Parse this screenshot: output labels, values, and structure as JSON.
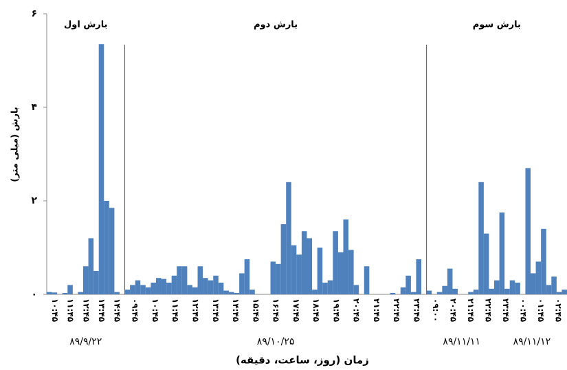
{
  "chart_data": {
    "type": "bar",
    "y_label": "بارش (میلی متر)",
    "x_label": "زمان (روز، ساعت، دقیقه)",
    "color": "#4f81bd",
    "ylim": [
      0,
      6
    ],
    "yticks": [
      {
        "value": 0,
        "label": "۰"
      },
      {
        "value": 2,
        "label": "۲"
      },
      {
        "value": 4,
        "label": "۴"
      },
      {
        "value": 6,
        "label": "۶"
      }
    ],
    "series": [
      {
        "name": "بارش اول",
        "values": [
          0.05,
          0.04,
          0,
          0.03,
          0.2,
          0,
          0.05,
          0.6,
          1.2,
          0.5,
          5.35,
          2.0,
          1.85,
          0.05,
          0
        ],
        "x_labels": [
          "۱۰:۴۵",
          "۱۱:۴۵",
          "۱۲:۴۵",
          "۱۳:۴۵",
          "۱۴:۴۵"
        ],
        "dates": [
          "۸۹/۹/۲۲"
        ]
      },
      {
        "name": "بارش دوم",
        "values": [
          0.1,
          0.2,
          0.3,
          0.2,
          0.15,
          0.25,
          0.35,
          0.33,
          0.25,
          0.4,
          0.6,
          0.6,
          0.2,
          0.15,
          0.6,
          0.35,
          0.3,
          0.4,
          0.25,
          0.08,
          0.05,
          0.03,
          0.45,
          0.75,
          0.1,
          0,
          0,
          0,
          0.7,
          0.65,
          1.5,
          2.4,
          1.05,
          0.85,
          1.35,
          1.2,
          0.1,
          1.0,
          0.25,
          0.3,
          1.35,
          0.9,
          1.6,
          0.95,
          0.2,
          0,
          0.6,
          0,
          0,
          0,
          0,
          0.03,
          0,
          0.15,
          0.4,
          0.05,
          0.75,
          0
        ],
        "x_labels": [
          "۰۹:۴۵",
          "۱۰:۴۵",
          "۱۱:۴۵",
          "۱۲:۴۵",
          "۱۳:۴۵",
          "۱۴:۴۵",
          "۱۵:۴۵",
          "۱۶:۴۵",
          "۱۷:۴۵",
          "۱۸:۴۵",
          "۱۹:۴۵",
          "۲۰:۴۵",
          "۲۱:۴۵",
          "۲۲:۴۵",
          "۲۳:۴۵"
        ],
        "dates": [
          "۸۹/۱۰/۲۵"
        ]
      },
      {
        "name": "بارش سوم",
        "values": [
          0.08,
          0,
          0.05,
          0.18,
          0.55,
          0.12,
          0,
          0,
          0.05,
          0.1,
          2.4,
          1.3,
          0.12,
          0.3,
          1.75,
          0.12,
          0.3,
          0.25,
          0,
          2.7,
          0.45,
          0.7,
          1.4,
          0.2,
          0.38,
          0.05,
          0.1
        ],
        "x_labels": [
          "۰۹:۰۰",
          "۲۰:۴۵",
          "۲۱:۴۵",
          "۲۲:۴۵",
          "۲۳:۴۵",
          "۰۰:۴۵",
          "۰۱:۴۵",
          "۰۲:۴۵"
        ],
        "dates": [
          "۸۹/۱۱/۱۱",
          "۸۹/۱۱/۱۲"
        ]
      }
    ]
  }
}
